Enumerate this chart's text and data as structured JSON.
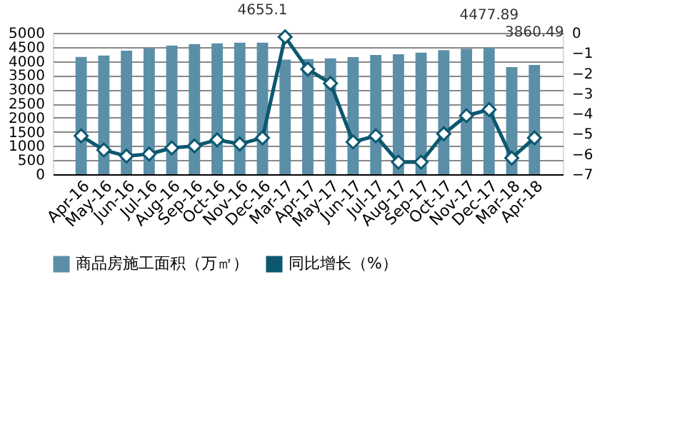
{
  "chart_data": {
    "type": "bar",
    "categories": [
      "Apr-16",
      "May-16",
      "Jun-16",
      "Jul-16",
      "Aug-16",
      "Sep-16",
      "Oct-16",
      "Nov-16",
      "Dec-16",
      "Mar-17",
      "Apr-17",
      "May-17",
      "Jun-17",
      "Jul-17",
      "Aug-17",
      "Sep-17",
      "Oct-17",
      "Nov-17",
      "Dec-17",
      "Mar-18",
      "Apr-18"
    ],
    "series": [
      {
        "name": "商品房施工面积（万㎡）",
        "color": "#5b8fa8",
        "values": [
          4150,
          4200,
          4370,
          4450,
          4550,
          4600,
          4630,
          4650,
          4655.1,
          4050,
          4070,
          4100,
          4140,
          4220,
          4240,
          4300,
          4390,
          4440,
          4477.89,
          3790,
          3860.49
        ],
        "value_labels": [
          null,
          null,
          null,
          null,
          null,
          null,
          null,
          null,
          "4655.1",
          null,
          null,
          null,
          null,
          null,
          null,
          null,
          null,
          null,
          "4477.89",
          null,
          "3860.49"
        ]
      },
      {
        "name": "同比增长（%）",
        "type": "line",
        "axis": "y2",
        "color": "#0d5870",
        "marker": "diamond",
        "values": [
          -5.1,
          -5.8,
          -6.1,
          -6.0,
          -5.7,
          -5.6,
          -5.3,
          -5.5,
          -5.2,
          -0.2,
          -1.8,
          -2.5,
          -5.4,
          -5.1,
          -6.4,
          -6.4,
          -5.0,
          -4.1,
          -3.8,
          -6.2,
          -5.2
        ]
      }
    ],
    "ylim": [
      0,
      5000
    ],
    "yticks": [
      0,
      500,
      1000,
      1500,
      2000,
      2500,
      3000,
      3500,
      4000,
      4500,
      5000
    ],
    "y2lim": [
      -7,
      0
    ],
    "y2ticks": [
      -7,
      -6,
      -5,
      -4,
      -3,
      -2,
      -1,
      0
    ],
    "grid": "y",
    "legend": "bottom"
  }
}
